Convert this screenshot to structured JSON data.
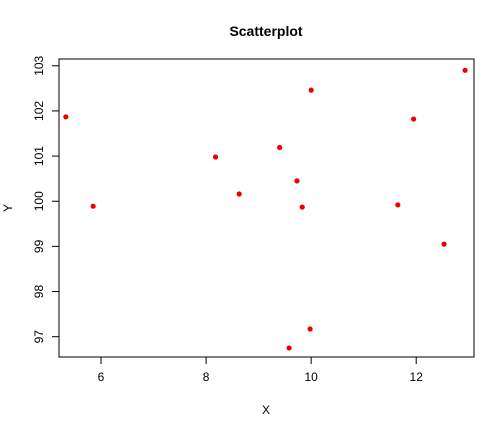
{
  "chart_data": {
    "type": "scatter",
    "title": "Scatterplot",
    "xlabel": "X",
    "ylabel": "Y",
    "xlim": [
      5.2,
      13.1
    ],
    "ylim": [
      96.55,
      103.15
    ],
    "x_ticks": [
      6,
      8,
      10,
      12
    ],
    "y_ticks": [
      97,
      98,
      99,
      100,
      101,
      102,
      103
    ],
    "grid": false,
    "legend": "none",
    "point_color": "#ee0000",
    "points": [
      {
        "x": 5.33,
        "y": 101.87
      },
      {
        "x": 5.85,
        "y": 99.89
      },
      {
        "x": 8.18,
        "y": 100.98
      },
      {
        "x": 8.63,
        "y": 100.16
      },
      {
        "x": 9.4,
        "y": 101.19
      },
      {
        "x": 9.58,
        "y": 96.75
      },
      {
        "x": 9.73,
        "y": 100.45
      },
      {
        "x": 9.83,
        "y": 99.87
      },
      {
        "x": 9.98,
        "y": 97.17
      },
      {
        "x": 10.0,
        "y": 102.46
      },
      {
        "x": 11.65,
        "y": 99.92
      },
      {
        "x": 11.95,
        "y": 101.82
      },
      {
        "x": 12.53,
        "y": 99.05
      },
      {
        "x": 12.93,
        "y": 102.9
      }
    ]
  }
}
